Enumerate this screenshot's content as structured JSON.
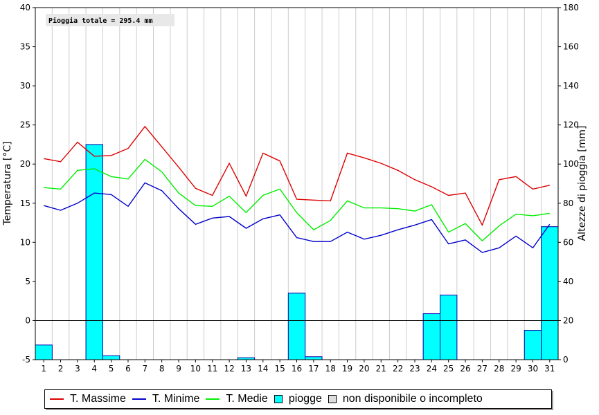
{
  "chart_data": {
    "type": "bar+line",
    "x": [
      1,
      2,
      3,
      4,
      5,
      6,
      7,
      8,
      9,
      10,
      11,
      12,
      13,
      14,
      15,
      16,
      17,
      18,
      19,
      20,
      21,
      22,
      23,
      24,
      25,
      26,
      27,
      28,
      29,
      30,
      31
    ],
    "x_ticks": [
      "1",
      "2",
      "3",
      "4",
      "5",
      "6",
      "7",
      "8",
      "9",
      "10",
      "11",
      "12",
      "13",
      "14",
      "15",
      "16",
      "17",
      "18",
      "19",
      "20",
      "21",
      "22",
      "23",
      "24",
      "25",
      "26",
      "27",
      "28",
      "29",
      "30",
      "31"
    ],
    "ylabel_left": "Temperatura [°C]",
    "ylabel_right": "Altezze di pioggia [mm]",
    "ylim_left": [
      -5,
      40
    ],
    "ylim_right": [
      0,
      180
    ],
    "yticks_left": [
      "-5",
      "0",
      "5",
      "10",
      "15",
      "20",
      "25",
      "30",
      "35",
      "40"
    ],
    "yticks_right": [
      "0",
      "20",
      "40",
      "60",
      "80",
      "100",
      "120",
      "140",
      "160",
      "180"
    ],
    "grid": "vertical",
    "annotation": "Pioggia totale = 295.4 mm",
    "series": [
      {
        "name": "T. Massime",
        "color": "#dd0000",
        "values": [
          20.7,
          20.3,
          22.8,
          21.0,
          21.1,
          22.0,
          24.8,
          22.2,
          19.6,
          16.9,
          16.0,
          20.1,
          15.9,
          21.4,
          20.4,
          15.5,
          15.4,
          15.3,
          21.4,
          20.8,
          20.1,
          19.2,
          18.0,
          17.1,
          16.0,
          16.3,
          12.2,
          18.0,
          18.4,
          16.8,
          17.3
        ]
      },
      {
        "name": "T. Minime",
        "color": "#0000cc",
        "values": [
          14.7,
          14.1,
          15.0,
          16.3,
          16.1,
          14.6,
          17.6,
          16.6,
          14.3,
          12.3,
          13.1,
          13.3,
          11.8,
          13.0,
          13.5,
          10.6,
          10.1,
          10.1,
          11.3,
          10.4,
          10.9,
          11.6,
          12.2,
          12.9,
          9.8,
          10.3,
          8.7,
          9.3,
          10.8,
          9.3,
          12.3
        ]
      },
      {
        "name": "T. Medie",
        "color": "#00ee00",
        "values": [
          17.0,
          16.8,
          19.2,
          19.4,
          18.4,
          18.1,
          20.6,
          19.0,
          16.3,
          14.7,
          14.6,
          15.9,
          13.8,
          16.0,
          16.8,
          13.8,
          11.6,
          12.8,
          15.3,
          14.4,
          14.4,
          14.3,
          14.0,
          14.8,
          11.3,
          12.4,
          10.2,
          12.1,
          13.6,
          13.4,
          13.7
        ]
      }
    ],
    "bars": {
      "name": "piogge",
      "color": "#00ffff",
      "values": [
        7.5,
        0,
        0,
        110,
        2,
        0,
        0,
        0,
        0,
        0,
        0,
        0,
        1,
        0,
        0,
        34,
        1.5,
        0,
        0,
        0,
        0,
        0,
        0,
        23.5,
        33,
        0,
        0,
        0,
        0,
        15,
        68
      ]
    },
    "legend": [
      {
        "label": "T. Massime",
        "kind": "line",
        "color": "#dd0000"
      },
      {
        "label": "T. Minime",
        "kind": "line",
        "color": "#0000cc"
      },
      {
        "label": "T. Medie",
        "kind": "line",
        "color": "#00ee00"
      },
      {
        "label": "piogge",
        "kind": "box",
        "color": "#00ffff"
      },
      {
        "label": "non disponibile o incompleto",
        "kind": "box",
        "color": "#dddddd"
      }
    ],
    "legend_position": "bottom"
  }
}
